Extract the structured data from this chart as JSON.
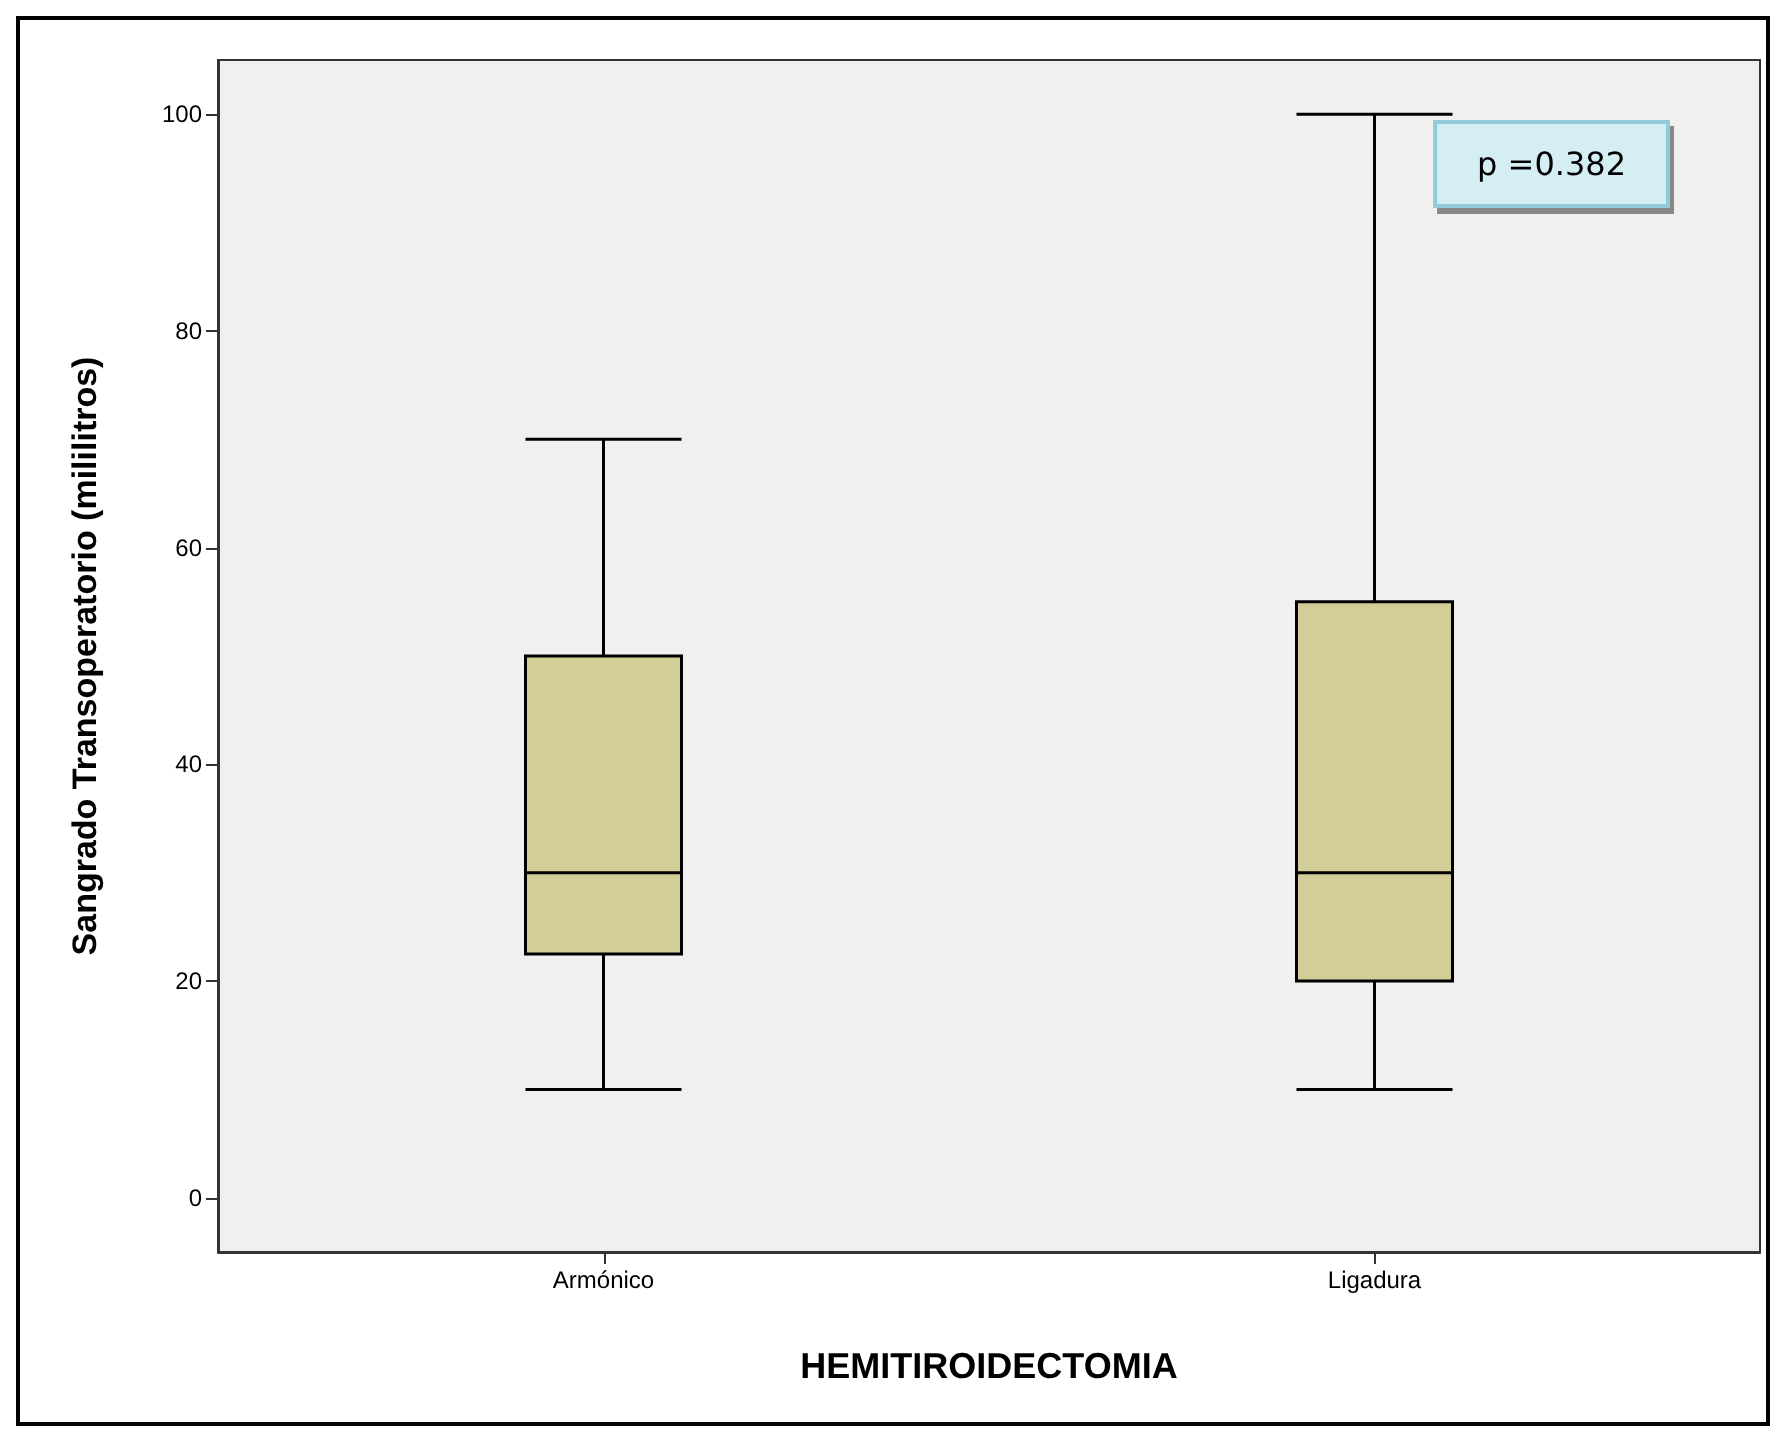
{
  "chart_data": {
    "type": "box",
    "xlabel": "HEMITIROIDECTOMIA",
    "ylabel": "Sangrado Transoperatorio (mililitros)",
    "categories": [
      "Armónico",
      "Ligadura"
    ],
    "boxes": [
      {
        "low": 10,
        "q1": 22.5,
        "median": 30,
        "q3": 50,
        "high": 70
      },
      {
        "low": 10,
        "q1": 20,
        "median": 30,
        "q3": 55,
        "high": 100
      }
    ],
    "color": "#d3cd98",
    "ylim": [
      -5,
      105
    ],
    "yticks": [
      0,
      20,
      40,
      60,
      80,
      100
    ],
    "grid": false,
    "annotations": [
      "p =0.382"
    ]
  }
}
